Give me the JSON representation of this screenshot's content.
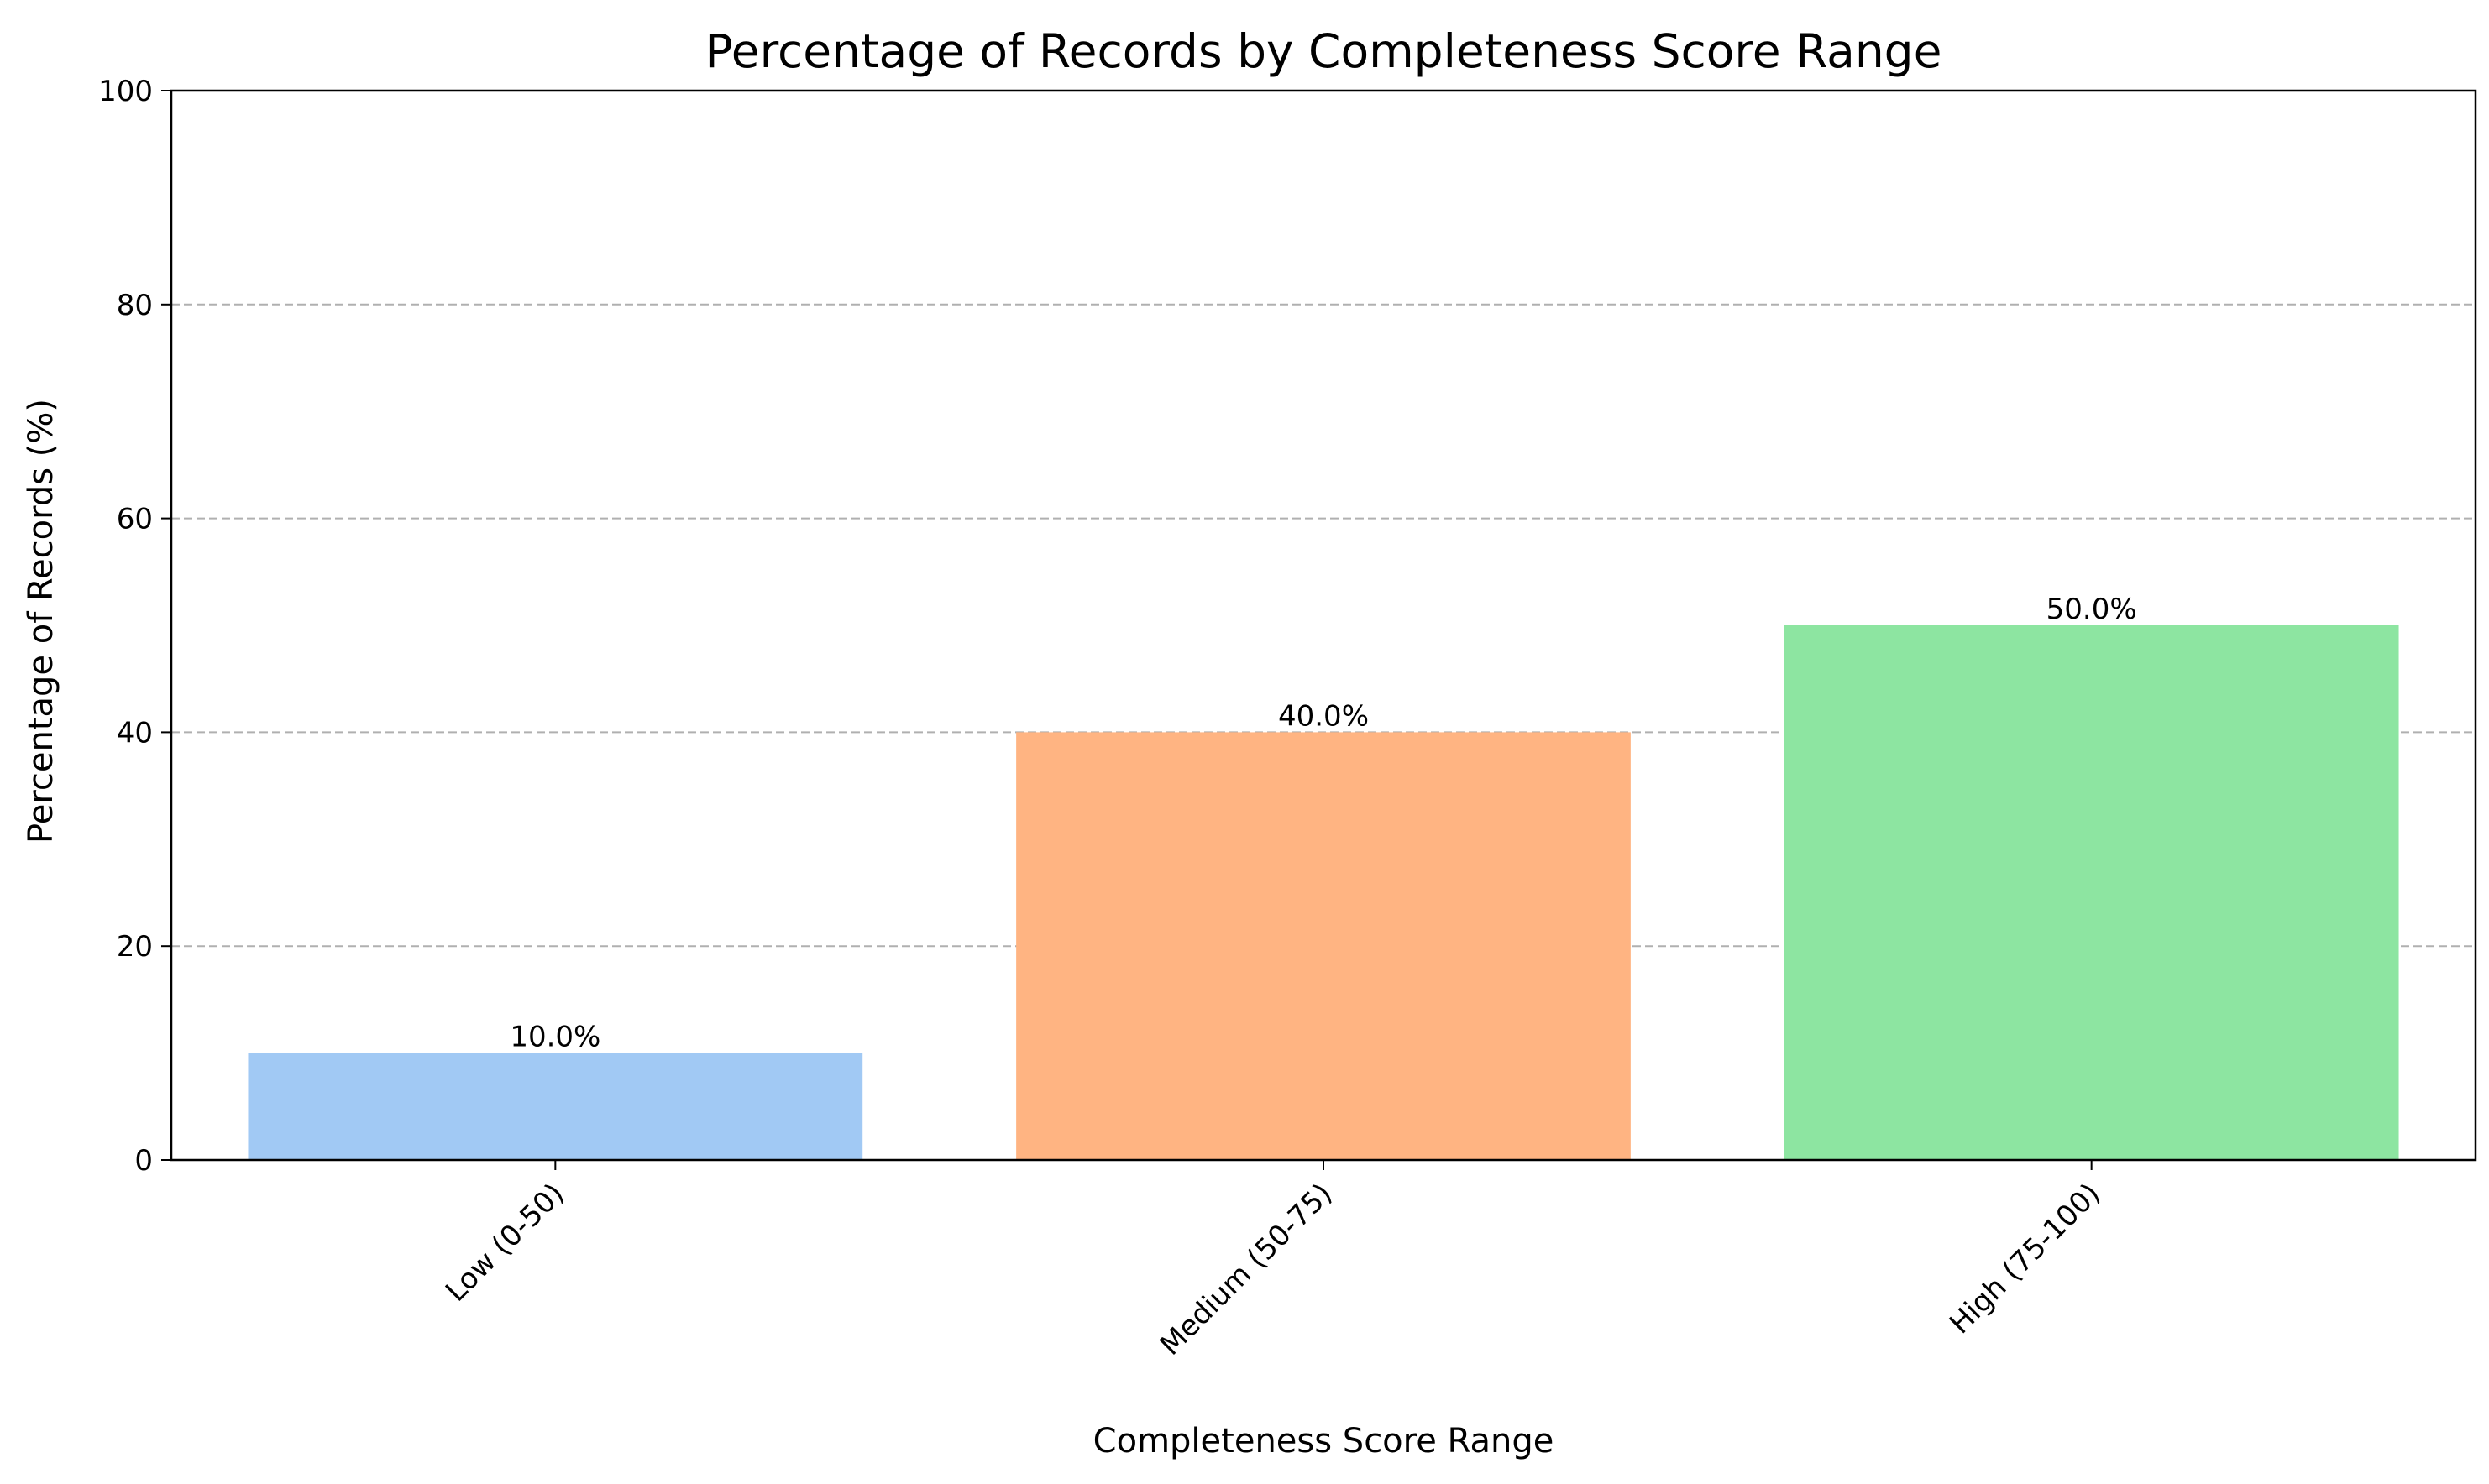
{
  "chart_data": {
    "type": "bar",
    "title": "Percentage of Records by Completeness Score Range",
    "xlabel": "Completeness Score Range",
    "ylabel": "Percentage of Records (%)",
    "categories": [
      "Low (0-50)",
      "Medium (50-75)",
      "High (75-100)"
    ],
    "values": [
      10.0,
      40.0,
      50.0
    ],
    "value_labels": [
      "10.0%",
      "40.0%",
      "50.0%"
    ],
    "colors": [
      "#a1c9f4",
      "#ffb482",
      "#8de5a1"
    ],
    "ylim": [
      0,
      100
    ],
    "yticks": [
      0,
      20,
      40,
      60,
      80,
      100
    ],
    "grid": "y-dashed",
    "legend": "none"
  }
}
